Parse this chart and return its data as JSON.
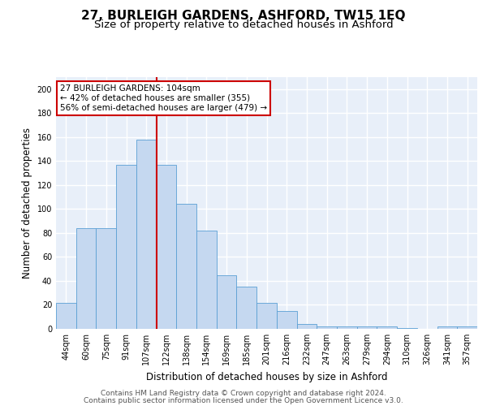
{
  "title1": "27, BURLEIGH GARDENS, ASHFORD, TW15 1EQ",
  "title2": "Size of property relative to detached houses in Ashford",
  "xlabel": "Distribution of detached houses by size in Ashford",
  "ylabel": "Number of detached properties",
  "categories": [
    "44sqm",
    "60sqm",
    "75sqm",
    "91sqm",
    "107sqm",
    "122sqm",
    "138sqm",
    "154sqm",
    "169sqm",
    "185sqm",
    "201sqm",
    "216sqm",
    "232sqm",
    "247sqm",
    "263sqm",
    "279sqm",
    "294sqm",
    "310sqm",
    "326sqm",
    "341sqm",
    "357sqm"
  ],
  "values": [
    22,
    84,
    84,
    137,
    158,
    137,
    104,
    82,
    45,
    35,
    22,
    15,
    4,
    2,
    2,
    2,
    2,
    1,
    0,
    2,
    2
  ],
  "bar_color": "#c5d8f0",
  "bar_edge_color": "#5a9fd4",
  "background_color": "#e8eff9",
  "grid_color": "#ffffff",
  "vline_x_index": 4,
  "vline_color": "#cc0000",
  "annotation_lines": [
    "27 BURLEIGH GARDENS: 104sqm",
    "← 42% of detached houses are smaller (355)",
    "56% of semi-detached houses are larger (479) →"
  ],
  "annotation_box_color": "#cc0000",
  "ylim": [
    0,
    210
  ],
  "yticks": [
    0,
    20,
    40,
    60,
    80,
    100,
    120,
    140,
    160,
    180,
    200
  ],
  "footer_line1": "Contains HM Land Registry data © Crown copyright and database right 2024.",
  "footer_line2": "Contains public sector information licensed under the Open Government Licence v3.0.",
  "title1_fontsize": 11,
  "title2_fontsize": 9.5,
  "axis_fontsize": 8.5,
  "tick_fontsize": 7,
  "footer_fontsize": 6.5,
  "ann_fontsize": 7.5
}
